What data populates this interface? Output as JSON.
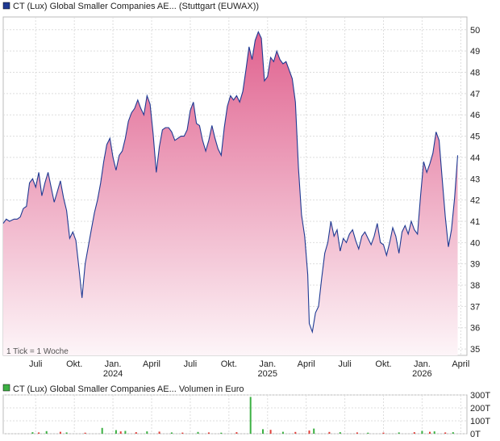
{
  "price_chart": {
    "legend_label": "CT (Lux) Global Smaller Companies AE... (Stuttgart (EUWAX))",
    "legend_color": "#1f3a93",
    "tick_note": "1 Tick = 1 Woche",
    "line_color": "#1f3a93",
    "fill_top_color": "#e0628f",
    "fill_bottom_color": "#fdf5f8"
  },
  "volume_chart": {
    "legend_label": "CT (Lux) Global Smaller Companies AE... Volumen in Euro",
    "legend_color": "#3cb043"
  },
  "chart_data": [
    {
      "type": "area",
      "title": "CT (Lux) Global Smaller Companies AE... (Stuttgart (EUWAX))",
      "y_axis_side": "right",
      "ylim": [
        34.7,
        50.6
      ],
      "y_ticks": [
        35,
        36,
        37,
        38,
        39,
        40,
        41,
        42,
        43,
        44,
        45,
        46,
        47,
        48,
        49,
        50
      ],
      "x_ticks": [
        {
          "label": "Juli",
          "year": "",
          "x": 2023.5
        },
        {
          "label": "Okt.",
          "year": "",
          "x": 2023.75
        },
        {
          "label": "Jan.",
          "year": "2024",
          "x": 2024.0
        },
        {
          "label": "April",
          "year": "",
          "x": 2024.25
        },
        {
          "label": "Juli",
          "year": "",
          "x": 2024.5
        },
        {
          "label": "Okt.",
          "year": "",
          "x": 2024.75
        },
        {
          "label": "Jan.",
          "year": "2025",
          "x": 2025.0
        },
        {
          "label": "April",
          "year": "",
          "x": 2025.25
        },
        {
          "label": "Juli",
          "year": "",
          "x": 2025.5
        },
        {
          "label": "Okt.",
          "year": "",
          "x": 2025.75
        },
        {
          "label": "Jan.",
          "year": "2026",
          "x": 2026.0
        },
        {
          "label": "April",
          "year": "",
          "x": 2026.25
        }
      ],
      "xlim": [
        2023.29,
        2026.29
      ],
      "grid": true,
      "series": [
        {
          "values": [
            [
              2023.29,
              40.9
            ],
            [
              2023.31,
              41.1
            ],
            [
              2023.33,
              41.0
            ],
            [
              2023.36,
              41.1
            ],
            [
              2023.38,
              41.1
            ],
            [
              2023.4,
              41.2
            ],
            [
              2023.42,
              41.6
            ],
            [
              2023.44,
              41.7
            ],
            [
              2023.46,
              42.8
            ],
            [
              2023.48,
              43.0
            ],
            [
              2023.5,
              42.6
            ],
            [
              2023.52,
              43.3
            ],
            [
              2023.54,
              42.2
            ],
            [
              2023.56,
              42.8
            ],
            [
              2023.58,
              43.3
            ],
            [
              2023.6,
              42.6
            ],
            [
              2023.62,
              41.9
            ],
            [
              2023.64,
              42.4
            ],
            [
              2023.66,
              42.9
            ],
            [
              2023.68,
              42.1
            ],
            [
              2023.7,
              41.5
            ],
            [
              2023.72,
              40.2
            ],
            [
              2023.74,
              40.5
            ],
            [
              2023.76,
              40.1
            ],
            [
              2023.78,
              38.8
            ],
            [
              2023.8,
              37.4
            ],
            [
              2023.82,
              39.0
            ],
            [
              2023.84,
              39.8
            ],
            [
              2023.86,
              40.6
            ],
            [
              2023.88,
              41.4
            ],
            [
              2023.9,
              42.0
            ],
            [
              2023.92,
              42.8
            ],
            [
              2023.94,
              43.8
            ],
            [
              2023.96,
              44.6
            ],
            [
              2023.98,
              44.9
            ],
            [
              2024.0,
              44.0
            ],
            [
              2024.02,
              43.4
            ],
            [
              2024.04,
              44.1
            ],
            [
              2024.06,
              44.3
            ],
            [
              2024.08,
              44.9
            ],
            [
              2024.1,
              45.7
            ],
            [
              2024.12,
              46.1
            ],
            [
              2024.14,
              46.3
            ],
            [
              2024.16,
              46.7
            ],
            [
              2024.18,
              46.3
            ],
            [
              2024.2,
              46.0
            ],
            [
              2024.22,
              46.9
            ],
            [
              2024.24,
              46.5
            ],
            [
              2024.26,
              45.1
            ],
            [
              2024.28,
              43.3
            ],
            [
              2024.3,
              44.5
            ],
            [
              2024.32,
              45.3
            ],
            [
              2024.34,
              45.4
            ],
            [
              2024.36,
              45.4
            ],
            [
              2024.38,
              45.2
            ],
            [
              2024.4,
              44.8
            ],
            [
              2024.42,
              44.9
            ],
            [
              2024.44,
              45.0
            ],
            [
              2024.46,
              45.0
            ],
            [
              2024.48,
              45.3
            ],
            [
              2024.5,
              46.2
            ],
            [
              2024.52,
              46.6
            ],
            [
              2024.54,
              45.6
            ],
            [
              2024.56,
              45.5
            ],
            [
              2024.58,
              44.8
            ],
            [
              2024.6,
              44.3
            ],
            [
              2024.62,
              44.8
            ],
            [
              2024.64,
              45.5
            ],
            [
              2024.66,
              44.9
            ],
            [
              2024.68,
              44.4
            ],
            [
              2024.7,
              44.1
            ],
            [
              2024.72,
              45.4
            ],
            [
              2024.74,
              46.4
            ],
            [
              2024.76,
              46.9
            ],
            [
              2024.78,
              46.7
            ],
            [
              2024.8,
              46.9
            ],
            [
              2024.82,
              46.6
            ],
            [
              2024.84,
              47.1
            ],
            [
              2024.86,
              48.1
            ],
            [
              2024.88,
              49.2
            ],
            [
              2024.9,
              48.6
            ],
            [
              2024.92,
              49.5
            ],
            [
              2024.94,
              49.9
            ],
            [
              2024.96,
              49.6
            ],
            [
              2024.98,
              47.6
            ],
            [
              2025.0,
              47.8
            ],
            [
              2025.02,
              48.7
            ],
            [
              2025.04,
              48.5
            ],
            [
              2025.06,
              49.0
            ],
            [
              2025.08,
              48.6
            ],
            [
              2025.1,
              48.4
            ],
            [
              2025.12,
              48.5
            ],
            [
              2025.14,
              48.1
            ],
            [
              2025.16,
              47.7
            ],
            [
              2025.18,
              46.6
            ],
            [
              2025.2,
              43.5
            ],
            [
              2025.22,
              41.3
            ],
            [
              2025.24,
              40.3
            ],
            [
              2025.26,
              38.5
            ],
            [
              2025.27,
              36.2
            ],
            [
              2025.29,
              35.8
            ],
            [
              2025.31,
              36.7
            ],
            [
              2025.33,
              37.0
            ],
            [
              2025.35,
              38.3
            ],
            [
              2025.37,
              39.5
            ],
            [
              2025.39,
              40.0
            ],
            [
              2025.41,
              41.0
            ],
            [
              2025.43,
              40.3
            ],
            [
              2025.45,
              40.6
            ],
            [
              2025.47,
              39.6
            ],
            [
              2025.49,
              40.2
            ],
            [
              2025.51,
              40.0
            ],
            [
              2025.53,
              40.4
            ],
            [
              2025.55,
              40.6
            ],
            [
              2025.57,
              40.1
            ],
            [
              2025.59,
              39.7
            ],
            [
              2025.61,
              40.3
            ],
            [
              2025.63,
              40.5
            ],
            [
              2025.65,
              40.2
            ],
            [
              2025.67,
              39.9
            ],
            [
              2025.69,
              40.3
            ],
            [
              2025.71,
              40.9
            ],
            [
              2025.73,
              40.0
            ],
            [
              2025.75,
              39.9
            ],
            [
              2025.77,
              39.4
            ],
            [
              2025.79,
              40.0
            ],
            [
              2025.81,
              40.7
            ],
            [
              2025.83,
              40.3
            ],
            [
              2025.85,
              39.5
            ],
            [
              2025.87,
              40.5
            ],
            [
              2025.89,
              40.8
            ],
            [
              2025.91,
              40.4
            ],
            [
              2025.93,
              41.0
            ],
            [
              2025.95,
              40.6
            ],
            [
              2025.97,
              40.4
            ],
            [
              2025.99,
              42.2
            ],
            [
              2026.01,
              43.8
            ],
            [
              2026.03,
              43.3
            ],
            [
              2026.05,
              43.7
            ],
            [
              2026.07,
              44.2
            ],
            [
              2026.09,
              45.2
            ],
            [
              2026.11,
              44.8
            ],
            [
              2026.13,
              43.0
            ],
            [
              2026.15,
              41.2
            ],
            [
              2026.17,
              39.8
            ],
            [
              2026.19,
              40.6
            ],
            [
              2026.21,
              42.1
            ],
            [
              2026.23,
              44.1
            ]
          ]
        }
      ]
    },
    {
      "type": "bar",
      "title": "CT (Lux) Global Smaller Companies AE... Volumen in Euro",
      "y_axis_side": "right",
      "ylim": [
        0,
        300
      ],
      "y_ticks": [
        {
          "label": "0T",
          "value": 0
        },
        {
          "label": "100T",
          "value": 100
        },
        {
          "label": "200T",
          "value": 200
        },
        {
          "label": "300T",
          "value": 300
        }
      ],
      "series": [
        {
          "name": "up",
          "color": "#3cb043",
          "values": [
            [
              2023.48,
              12
            ],
            [
              2023.57,
              20
            ],
            [
              2023.7,
              10
            ],
            [
              2023.93,
              45
            ],
            [
              2024.02,
              28
            ],
            [
              2024.08,
              22
            ],
            [
              2024.22,
              18
            ],
            [
              2024.38,
              10
            ],
            [
              2024.55,
              14
            ],
            [
              2024.7,
              8
            ],
            [
              2024.89,
              285
            ],
            [
              2024.97,
              35
            ],
            [
              2025.1,
              15
            ],
            [
              2025.3,
              40
            ],
            [
              2025.47,
              12
            ],
            [
              2025.65,
              8
            ],
            [
              2025.85,
              10
            ],
            [
              2026.0,
              22
            ],
            [
              2026.08,
              18
            ],
            [
              2026.2,
              12
            ]
          ]
        },
        {
          "name": "down",
          "color": "#e0403a",
          "values": [
            [
              2023.52,
              10
            ],
            [
              2023.66,
              15
            ],
            [
              2023.82,
              8
            ],
            [
              2024.05,
              18
            ],
            [
              2024.15,
              12
            ],
            [
              2024.3,
              16
            ],
            [
              2024.45,
              9
            ],
            [
              2024.62,
              10
            ],
            [
              2024.8,
              12
            ],
            [
              2025.02,
              30
            ],
            [
              2025.18,
              14
            ],
            [
              2025.27,
              25
            ],
            [
              2025.4,
              14
            ],
            [
              2025.58,
              10
            ],
            [
              2025.75,
              9
            ],
            [
              2025.95,
              12
            ],
            [
              2026.05,
              15
            ],
            [
              2026.15,
              10
            ]
          ]
        }
      ]
    }
  ]
}
